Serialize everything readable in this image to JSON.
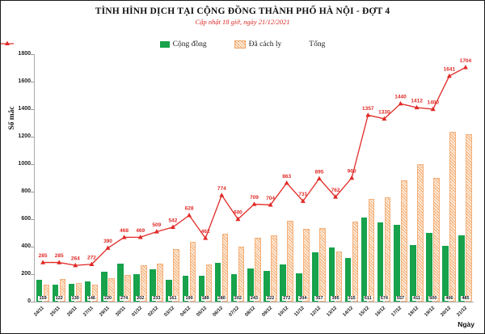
{
  "header": {
    "title": "TÌNH HÌNH DỊCH TẠI CỘNG ĐỒNG THÀNH PHỐ HÀ NỘI - ĐỢT 4",
    "subtitle": "Cập nhật 18 giờ, ngày 21/12/2021"
  },
  "legend": {
    "community_label": "Cộng đồng",
    "quarantine_label": "Đã cách ly",
    "total_label": "Tổng"
  },
  "axes": {
    "y_label": "Số mắc",
    "x_label": "Ngày",
    "y_ticks": [
      0,
      200,
      400,
      600,
      800,
      1000,
      1200,
      1400,
      1600,
      1800
    ]
  },
  "colors": {
    "community_green": "#17a24b",
    "quarantine_orange": "#f5aa70",
    "total_red": "#e02a26",
    "subtitle_red": "#d92b27"
  },
  "chart_data": {
    "type": "bar",
    "title": "TÌNH HÌNH DỊCH TẠI CỘNG ĐỒNG THÀNH PHỐ HÀ NỘI - ĐỢT 4",
    "subtitle": "Cập nhật 18 giờ, ngày 21/12/2021",
    "xlabel": "Ngày",
    "ylabel": "Số mắc",
    "ylim": [
      0,
      1800
    ],
    "grid": false,
    "legend_position": "top",
    "categories": [
      "24/11",
      "25/11",
      "26/11",
      "27/11",
      "29/11",
      "30/11",
      "01/12",
      "02/12",
      "03/12",
      "04/12",
      "05/12",
      "06/12",
      "07/12",
      "08/12",
      "09/12",
      "10/12",
      "11/12",
      "12/12",
      "13/12",
      "14/12",
      "15/12",
      "16/12",
      "17/12",
      "18/12",
      "19/12",
      "20/12",
      "21/12"
    ],
    "series": [
      {
        "name": "Cộng đồng",
        "type": "bar",
        "color": "#17a24b",
        "labeled": true,
        "values": [
          159,
          122,
          130,
          146,
          220,
          274,
          202,
          233,
          161,
          190,
          189,
          280,
          202,
          243,
          222,
          272,
          204,
          357,
          395,
          315,
          611,
          574,
          557,
          411,
          500,
          406,
          485
        ]
      },
      {
        "name": "Đã cách ly",
        "type": "bar",
        "style": "hatched",
        "color": "#f5aa70",
        "labeled": false,
        "values": [
          126,
          163,
          134,
          126,
          170,
          194,
          267,
          276,
          381,
          438,
          273,
          494,
          398,
          466,
          482,
          591,
          527,
          538,
          367,
          585,
          746,
          756,
          883,
          1001,
          900,
          1235,
          1219
        ]
      },
      {
        "name": "Tổng",
        "type": "line",
        "color": "#e02a26",
        "marker": "triangle",
        "labeled": true,
        "values": [
          285,
          285,
          264,
          272,
          390,
          468,
          469,
          509,
          542,
          628,
          462,
          774,
          600,
          709,
          704,
          863,
          731,
          895,
          762,
          900,
          1357,
          1330,
          1440,
          1412,
          1400,
          1641,
          1704
        ]
      }
    ]
  }
}
